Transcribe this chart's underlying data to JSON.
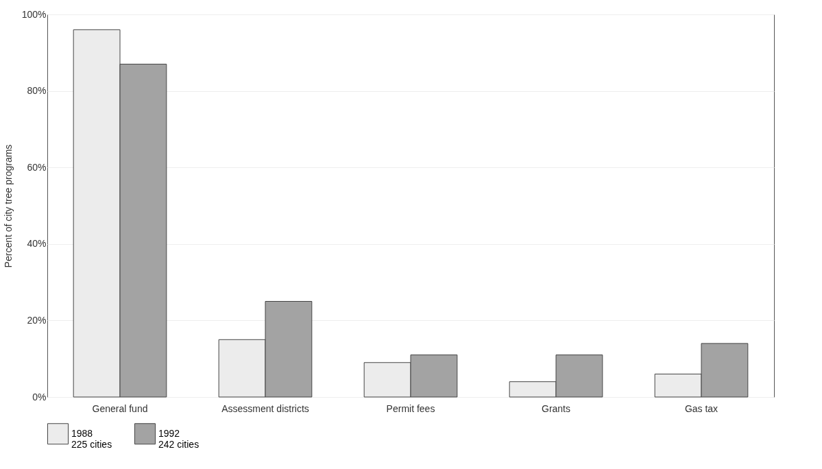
{
  "chart_data": {
    "type": "bar",
    "ylabel": "Percent of city tree programs",
    "categories": [
      "General fund",
      "Assessment districts",
      "Permit fees",
      "Grants",
      "Gas tax"
    ],
    "series": [
      {
        "name": "1988\n225 cities",
        "color": "#ececec",
        "values": [
          96,
          15,
          9,
          4,
          6
        ]
      },
      {
        "name": "1992\n242 cities",
        "color": "#a3a3a3",
        "values": [
          87,
          25,
          11,
          11,
          14
        ]
      }
    ],
    "ylim": [
      0,
      100
    ],
    "yticks": [
      {
        "value": 0,
        "label": "0%"
      },
      {
        "value": 20,
        "label": "20%"
      },
      {
        "value": 40,
        "label": "40%"
      },
      {
        "value": 60,
        "label": "60%"
      },
      {
        "value": 80,
        "label": "80%"
      },
      {
        "value": 100,
        "label": "100%"
      }
    ],
    "grid": "y",
    "legend": "bottom"
  }
}
